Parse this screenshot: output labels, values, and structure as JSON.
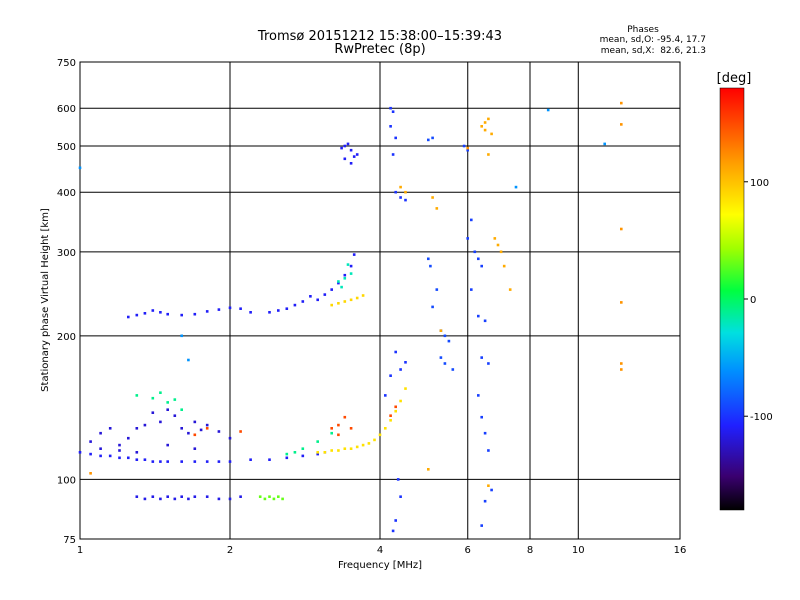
{
  "chart_data": {
    "type": "scatter",
    "title": "Tromsø 20151212 15:38:00–15:39:43",
    "subtitle": "RwPretec (8p)",
    "xlabel": "Frequency [MHz]",
    "ylabel": "Stationary phase Virtual Height [km]",
    "x_scale": "log",
    "y_scale": "log",
    "xlim": [
      1,
      16
    ],
    "ylim": [
      75,
      750
    ],
    "x_ticks": [
      1,
      2,
      4,
      6,
      8,
      10,
      16
    ],
    "y_ticks": [
      75,
      100,
      200,
      300,
      400,
      500,
      600,
      750
    ],
    "grid": true,
    "stats": {
      "heading": "Phases",
      "line_o": "mean, sd,O: -95.4, 17.7",
      "line_x": "mean, sd,X:  82.6, 21.3"
    },
    "colorbar": {
      "label": "[deg]",
      "range": [
        -180,
        180
      ],
      "ticks": [
        100,
        0,
        -100
      ]
    },
    "series": [
      {
        "trace": "lower-trace",
        "color_deg": -110,
        "points": [
          [
            1.0,
            114
          ],
          [
            1.05,
            113
          ],
          [
            1.1,
            112
          ],
          [
            1.15,
            112
          ],
          [
            1.2,
            111
          ],
          [
            1.25,
            111
          ],
          [
            1.3,
            110
          ],
          [
            1.35,
            110
          ],
          [
            1.4,
            109
          ],
          [
            1.45,
            109
          ],
          [
            1.5,
            109
          ],
          [
            1.6,
            109
          ],
          [
            1.7,
            109
          ],
          [
            1.8,
            109
          ],
          [
            1.9,
            109
          ],
          [
            2.0,
            109
          ],
          [
            2.2,
            110
          ],
          [
            2.4,
            110
          ],
          [
            2.6,
            111
          ],
          [
            2.8,
            112
          ],
          [
            3.0,
            113
          ],
          [
            3.1,
            114
          ]
        ]
      },
      {
        "trace": "lower-trace-scatter",
        "color_deg": -120,
        "points": [
          [
            1.05,
            120
          ],
          [
            1.1,
            125
          ],
          [
            1.15,
            128
          ],
          [
            1.2,
            118
          ],
          [
            1.25,
            122
          ],
          [
            1.3,
            128
          ],
          [
            1.35,
            130
          ],
          [
            1.4,
            138
          ],
          [
            1.45,
            132
          ],
          [
            1.5,
            140
          ],
          [
            1.55,
            136
          ],
          [
            1.6,
            128
          ],
          [
            1.65,
            125
          ],
          [
            1.7,
            132
          ],
          [
            1.75,
            127
          ],
          [
            1.8,
            130
          ],
          [
            1.9,
            126
          ],
          [
            2.0,
            122
          ],
          [
            1.1,
            116
          ],
          [
            1.2,
            115
          ],
          [
            1.3,
            114
          ],
          [
            1.5,
            118
          ],
          [
            1.7,
            116
          ]
        ]
      },
      {
        "trace": "lower-trace-x",
        "color_deg": 85,
        "points": [
          [
            3.0,
            114
          ],
          [
            3.1,
            114
          ],
          [
            3.2,
            115
          ],
          [
            3.3,
            115
          ],
          [
            3.4,
            116
          ],
          [
            3.5,
            116
          ],
          [
            3.6,
            117
          ],
          [
            3.7,
            118
          ],
          [
            3.8,
            119
          ],
          [
            3.9,
            121
          ],
          [
            4.0,
            124
          ],
          [
            4.1,
            128
          ],
          [
            4.2,
            133
          ],
          [
            4.3,
            139
          ],
          [
            4.4,
            146
          ],
          [
            4.5,
            155
          ]
        ]
      },
      {
        "trace": "lower-trace-cyan",
        "color_deg": -10,
        "points": [
          [
            1.3,
            150
          ],
          [
            1.4,
            148
          ],
          [
            1.5,
            145
          ],
          [
            1.45,
            152
          ],
          [
            1.6,
            140
          ],
          [
            1.55,
            147
          ],
          [
            2.6,
            113
          ],
          [
            2.7,
            114
          ],
          [
            2.8,
            116
          ],
          [
            3.0,
            120
          ],
          [
            3.2,
            125
          ]
        ]
      },
      {
        "trace": "lower-trace-mixed",
        "color_deg": 150,
        "points": [
          [
            3.2,
            128
          ],
          [
            3.3,
            130
          ],
          [
            3.4,
            135
          ],
          [
            3.5,
            128
          ],
          [
            3.3,
            124
          ],
          [
            1.7,
            124
          ],
          [
            1.8,
            128
          ],
          [
            2.1,
            126
          ],
          [
            4.2,
            136
          ],
          [
            4.3,
            142
          ]
        ]
      },
      {
        "trace": "bottom-band",
        "color_deg": -115,
        "points": [
          [
            1.3,
            92
          ],
          [
            1.35,
            91
          ],
          [
            1.4,
            92
          ],
          [
            1.45,
            91
          ],
          [
            1.5,
            92
          ],
          [
            1.55,
            91
          ],
          [
            1.6,
            92
          ],
          [
            1.65,
            91
          ],
          [
            1.7,
            92
          ],
          [
            1.8,
            92
          ],
          [
            1.9,
            91
          ],
          [
            2.0,
            91
          ],
          [
            2.1,
            92
          ]
        ]
      },
      {
        "trace": "bottom-band-green",
        "color_deg": 30,
        "points": [
          [
            2.3,
            92
          ],
          [
            2.35,
            91
          ],
          [
            2.4,
            92
          ],
          [
            2.45,
            91
          ],
          [
            2.5,
            92
          ],
          [
            2.55,
            91
          ]
        ]
      },
      {
        "trace": "upper-trace",
        "color_deg": -110,
        "points": [
          [
            1.25,
            219
          ],
          [
            1.3,
            221
          ],
          [
            1.35,
            223
          ],
          [
            1.4,
            226
          ],
          [
            1.45,
            224
          ],
          [
            1.5,
            222
          ],
          [
            1.6,
            221
          ],
          [
            1.7,
            222
          ],
          [
            1.8,
            225
          ],
          [
            1.9,
            227
          ],
          [
            2.0,
            229
          ],
          [
            2.1,
            228
          ],
          [
            2.2,
            224
          ],
          [
            2.4,
            224
          ],
          [
            2.5,
            226
          ],
          [
            2.6,
            228
          ],
          [
            2.7,
            232
          ],
          [
            2.8,
            236
          ],
          [
            2.9,
            242
          ],
          [
            3.0,
            238
          ],
          [
            3.1,
            244
          ],
          [
            3.2,
            250
          ],
          [
            3.3,
            258
          ],
          [
            3.4,
            268
          ],
          [
            3.5,
            280
          ],
          [
            3.55,
            296
          ]
        ]
      },
      {
        "trace": "upper-trace-x",
        "color_deg": 90,
        "points": [
          [
            3.2,
            232
          ],
          [
            3.3,
            234
          ],
          [
            3.4,
            236
          ],
          [
            3.5,
            238
          ],
          [
            3.6,
            240
          ],
          [
            3.7,
            243
          ]
        ]
      },
      {
        "trace": "upper-trace-cyan",
        "color_deg": -20,
        "points": [
          [
            3.3,
            260
          ],
          [
            3.4,
            264
          ],
          [
            3.5,
            270
          ],
          [
            3.45,
            282
          ],
          [
            3.35,
            253
          ]
        ]
      },
      {
        "trace": "high-cluster",
        "color_deg": -110,
        "points": [
          [
            3.35,
            495
          ],
          [
            3.4,
            500
          ],
          [
            3.45,
            505
          ],
          [
            3.5,
            490
          ],
          [
            3.55,
            475
          ],
          [
            3.5,
            460
          ],
          [
            3.6,
            480
          ],
          [
            3.4,
            470
          ]
        ]
      },
      {
        "trace": "spread-f-4mhz",
        "color_deg": -100,
        "points": [
          [
            4.2,
            600
          ],
          [
            4.25,
            590
          ],
          [
            4.2,
            550
          ],
          [
            4.3,
            520
          ],
          [
            4.25,
            480
          ],
          [
            4.3,
            400
          ],
          [
            4.4,
            390
          ],
          [
            4.5,
            385
          ],
          [
            4.3,
            185
          ],
          [
            4.2,
            165
          ],
          [
            4.1,
            150
          ],
          [
            4.35,
            100
          ],
          [
            4.4,
            92
          ],
          [
            4.3,
            82
          ],
          [
            4.25,
            78
          ],
          [
            4.5,
            176
          ],
          [
            4.4,
            170
          ]
        ]
      },
      {
        "trace": "spread-f-5mhz",
        "color_deg": -90,
        "points": [
          [
            5.0,
            515
          ],
          [
            5.1,
            520
          ],
          [
            5.0,
            290
          ],
          [
            5.05,
            280
          ],
          [
            5.2,
            250
          ],
          [
            5.1,
            230
          ],
          [
            5.3,
            205
          ],
          [
            5.4,
            200
          ],
          [
            5.5,
            195
          ],
          [
            5.3,
            180
          ],
          [
            5.6,
            170
          ],
          [
            5.4,
            175
          ]
        ]
      },
      {
        "trace": "spread-f-6mhz",
        "color_deg": -95,
        "points": [
          [
            5.9,
            500
          ],
          [
            6.0,
            490
          ],
          [
            6.1,
            350
          ],
          [
            6.0,
            320
          ],
          [
            6.2,
            300
          ],
          [
            6.3,
            290
          ],
          [
            6.4,
            280
          ],
          [
            6.1,
            250
          ],
          [
            6.3,
            220
          ],
          [
            6.5,
            215
          ],
          [
            6.4,
            180
          ],
          [
            6.6,
            175
          ],
          [
            6.3,
            150
          ],
          [
            6.4,
            135
          ],
          [
            6.5,
            125
          ],
          [
            6.6,
            115
          ],
          [
            6.7,
            95
          ],
          [
            6.5,
            90
          ],
          [
            6.4,
            80
          ]
        ]
      },
      {
        "trace": "spread-f-x",
        "color_deg": 110,
        "points": [
          [
            4.4,
            410
          ],
          [
            4.5,
            400
          ],
          [
            5.1,
            390
          ],
          [
            5.2,
            370
          ],
          [
            5.3,
            205
          ],
          [
            6.4,
            550
          ],
          [
            6.5,
            560
          ],
          [
            6.6,
            570
          ],
          [
            6.5,
            540
          ],
          [
            6.7,
            530
          ],
          [
            6.8,
            320
          ],
          [
            6.9,
            310
          ],
          [
            7.0,
            300
          ],
          [
            7.1,
            280
          ],
          [
            7.3,
            250
          ],
          [
            6.6,
            480
          ],
          [
            5.0,
            105
          ],
          [
            6.6,
            97
          ]
        ]
      },
      {
        "trace": "isolated-points",
        "color_deg": -60,
        "points": [
          [
            1.0,
            450
          ],
          [
            1.65,
            178
          ],
          [
            1.6,
            200
          ],
          [
            8.7,
            595
          ],
          [
            7.5,
            410
          ],
          [
            11.3,
            505
          ]
        ]
      },
      {
        "trace": "isolated-x",
        "color_deg": 120,
        "points": [
          [
            12.2,
            615
          ],
          [
            12.2,
            555
          ],
          [
            12.2,
            335
          ],
          [
            12.2,
            235
          ],
          [
            12.2,
            175
          ],
          [
            12.2,
            170
          ],
          [
            6.0,
            495
          ],
          [
            1.05,
            103
          ]
        ]
      }
    ]
  }
}
